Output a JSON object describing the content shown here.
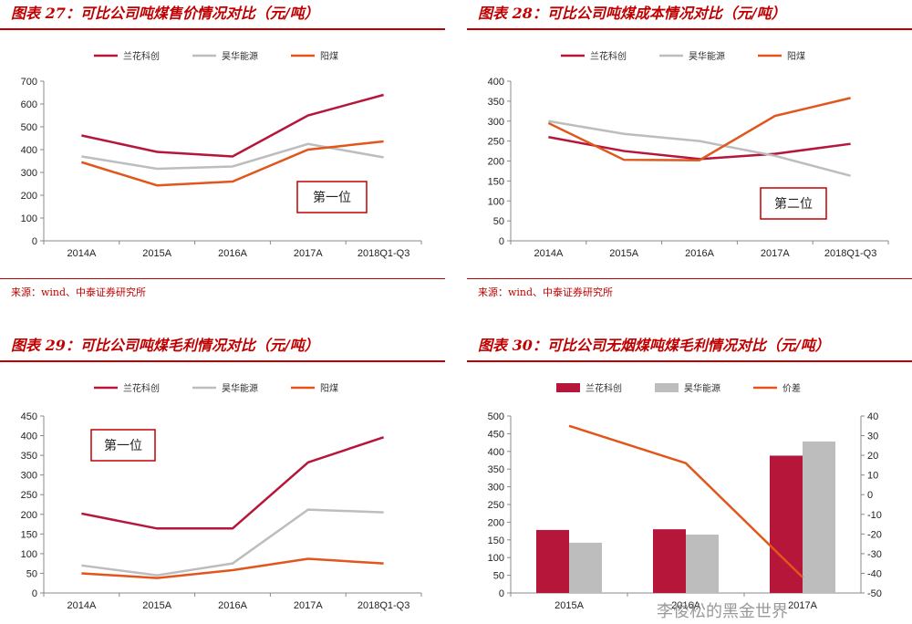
{
  "panels": [
    {
      "title": "图表 27：可比公司吨煤售价情况对比（元/吨）",
      "source": "来源：wind、中泰证券研究所",
      "annotation": "第一位"
    },
    {
      "title": "图表 28：可比公司吨煤成本情况对比（元/吨）",
      "source": "来源：wind、中泰证券研究所",
      "annotation": "第二位"
    },
    {
      "title": "图表 29：可比公司吨煤毛利情况对比（元/吨）",
      "annotation": "第一位"
    },
    {
      "title": "图表 30：可比公司无烟煤吨煤毛利情况对比（元/吨）"
    }
  ],
  "colors": {
    "lanhua": "#b5163a",
    "haohua": "#bdbdbd",
    "yangmei": "#e0561b",
    "title_red": "#c00000"
  },
  "watermark": "李俊松的黑金世界",
  "chart_data": [
    {
      "type": "line",
      "categories": [
        "2014A",
        "2015A",
        "2016A",
        "2017A",
        "2018Q1-Q3"
      ],
      "series": [
        {
          "name": "兰花科创",
          "values": [
            462,
            390,
            370,
            550,
            640
          ]
        },
        {
          "name": "昊华能源",
          "values": [
            370,
            316,
            326,
            425,
            366
          ]
        },
        {
          "name": "阳煤",
          "values": [
            345,
            243,
            260,
            400,
            436
          ]
        }
      ],
      "ylim": [
        0,
        700
      ],
      "yticks": [
        0,
        100,
        200,
        300,
        400,
        500,
        600,
        700
      ],
      "legend": "top"
    },
    {
      "type": "line",
      "categories": [
        "2014A",
        "2015A",
        "2016A",
        "2017A",
        "2018Q1-Q3"
      ],
      "series": [
        {
          "name": "兰花科创",
          "values": [
            260,
            225,
            205,
            218,
            243
          ]
        },
        {
          "name": "昊华能源",
          "values": [
            300,
            268,
            250,
            213,
            163
          ]
        },
        {
          "name": "阳煤",
          "values": [
            295,
            203,
            202,
            313,
            358
          ]
        }
      ],
      "ylim": [
        0,
        400
      ],
      "yticks": [
        0,
        50,
        100,
        150,
        200,
        250,
        300,
        350,
        400
      ],
      "legend": "top"
    },
    {
      "type": "line",
      "categories": [
        "2014A",
        "2015A",
        "2016A",
        "2017A",
        "2018Q1-Q3"
      ],
      "series": [
        {
          "name": "兰花科创",
          "values": [
            202,
            164,
            164,
            332,
            396
          ]
        },
        {
          "name": "昊华能源",
          "values": [
            70,
            45,
            75,
            212,
            205
          ]
        },
        {
          "name": "阳煤",
          "values": [
            50,
            38,
            58,
            87,
            75
          ]
        }
      ],
      "ylim": [
        0,
        450
      ],
      "yticks": [
        0,
        50,
        100,
        150,
        200,
        250,
        300,
        350,
        400,
        450
      ],
      "legend": "top"
    },
    {
      "type": "bar",
      "categories": [
        "2015A",
        "2016A",
        "2017A"
      ],
      "series": [
        {
          "name": "兰花科创",
          "values": [
            178,
            180,
            388
          ]
        },
        {
          "name": "昊华能源",
          "values": [
            142,
            165,
            428
          ]
        },
        {
          "name": "价差",
          "type": "line",
          "axis": "right",
          "values": [
            35,
            16,
            -42
          ]
        }
      ],
      "ylim": [
        0,
        500
      ],
      "yticks": [
        0,
        50,
        100,
        150,
        200,
        250,
        300,
        350,
        400,
        450,
        500
      ],
      "y2lim": [
        -50,
        40
      ],
      "y2ticks": [
        -50,
        -40,
        -30,
        -20,
        -10,
        0,
        10,
        20,
        30,
        40
      ],
      "legend": "top"
    }
  ]
}
